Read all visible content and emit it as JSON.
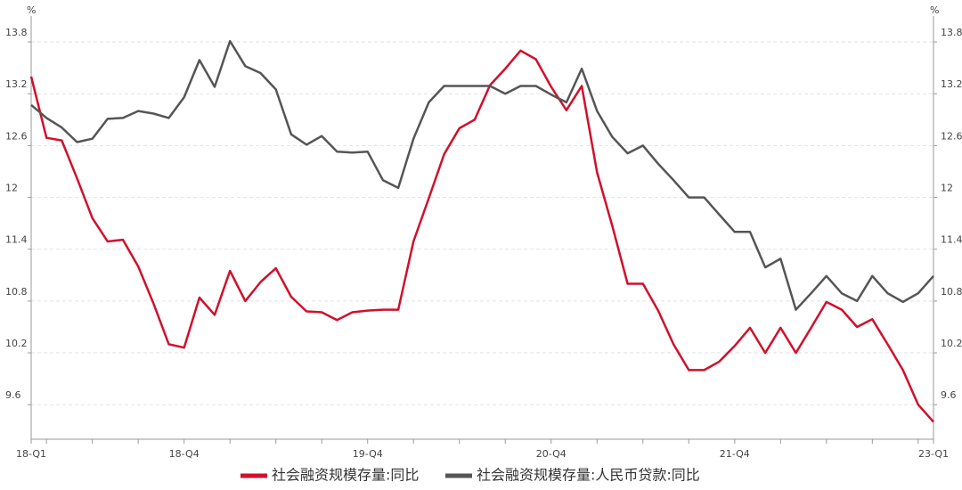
{
  "chart_data": {
    "type": "line",
    "yunit": "%",
    "y2unit": "%",
    "categories": [
      "18-Q1",
      null,
      null,
      null,
      null,
      null,
      null,
      null,
      null,
      null,
      "18-Q4",
      null,
      null,
      null,
      null,
      null,
      null,
      null,
      null,
      null,
      null,
      null,
      "19-Q4",
      null,
      null,
      null,
      null,
      null,
      null,
      null,
      null,
      null,
      null,
      null,
      "20-Q4",
      null,
      null,
      null,
      null,
      null,
      null,
      null,
      null,
      null,
      null,
      null,
      "21-Q4",
      null,
      null,
      null,
      null,
      null,
      null,
      null,
      null,
      null,
      null,
      null,
      null,
      "23-Q1"
    ],
    "ylim": [
      9.2,
      14.1
    ],
    "yticks": [
      9.6,
      10.2,
      10.8,
      11.4,
      12,
      12.6,
      13.2,
      13.8
    ],
    "y2lim": [
      9.2,
      14.1
    ],
    "y2ticks": [
      9.6,
      10.2,
      10.8,
      11.4,
      12,
      12.6,
      13.2,
      13.8
    ],
    "grid": true,
    "legend": "bottom",
    "series": [
      {
        "name": "社会融资规模存量:同比",
        "color": "#d0102c",
        "values": [
          13.4,
          12.69,
          12.66,
          12.22,
          11.76,
          11.49,
          11.51,
          11.2,
          10.77,
          10.3,
          10.26,
          10.84,
          10.64,
          11.15,
          10.8,
          11.02,
          11.18,
          10.85,
          10.68,
          10.67,
          10.58,
          10.67,
          10.69,
          10.7,
          10.7,
          11.49,
          11.99,
          12.5,
          12.8,
          12.9,
          13.3,
          13.49,
          13.7,
          13.6,
          13.28,
          13.01,
          13.29,
          12.29,
          11.67,
          11.0,
          11.0,
          10.69,
          10.3,
          10.0,
          10.0,
          10.1,
          10.28,
          10.49,
          10.2,
          10.49,
          10.2,
          10.49,
          10.79,
          10.7,
          10.5,
          10.59,
          10.3,
          10.0,
          9.6,
          9.4
        ]
      },
      {
        "name": "社会融资规模存量:人民币贷款:同比",
        "color": "#555555",
        "values": [
          13.07,
          12.92,
          12.81,
          12.64,
          12.68,
          12.91,
          12.92,
          13.0,
          12.97,
          12.92,
          13.16,
          13.59,
          13.28,
          13.81,
          13.52,
          13.44,
          13.25,
          12.73,
          12.61,
          12.71,
          12.53,
          12.52,
          12.53,
          12.2,
          12.11,
          12.68,
          13.1,
          13.29,
          13.29,
          13.29,
          13.29,
          13.2,
          13.29,
          13.29,
          13.19,
          13.1,
          13.49,
          13.0,
          12.7,
          12.51,
          12.6,
          12.39,
          12.2,
          12.0,
          12.0,
          11.8,
          11.6,
          11.6,
          11.19,
          11.29,
          10.7,
          10.89,
          11.09,
          10.89,
          10.8,
          11.09,
          10.89,
          10.79,
          10.89,
          11.09
        ]
      }
    ]
  }
}
